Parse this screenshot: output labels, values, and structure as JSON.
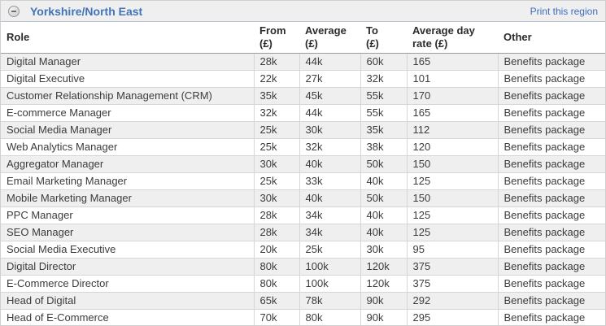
{
  "region": {
    "title": "Yorkshire/North East",
    "print_link_label": "Print this region",
    "collapse_icon": "minus-circle-icon"
  },
  "table": {
    "columns": [
      {
        "key": "role",
        "line1": "Role",
        "line2": ""
      },
      {
        "key": "from",
        "line1": "From",
        "line2": "(£)"
      },
      {
        "key": "avg",
        "line1": "Average",
        "line2": "(£)"
      },
      {
        "key": "to",
        "line1": "To",
        "line2": "(£)"
      },
      {
        "key": "rate",
        "line1": "Average day",
        "line2": "rate (£)"
      },
      {
        "key": "other",
        "line1": "Other",
        "line2": ""
      }
    ],
    "rows": [
      {
        "role": "Digital Manager",
        "from": "28k",
        "avg": "44k",
        "to": "60k",
        "rate": "165",
        "other": "Benefits package"
      },
      {
        "role": "Digital Executive",
        "from": "22k",
        "avg": "27k",
        "to": "32k",
        "rate": "101",
        "other": "Benefits package"
      },
      {
        "role": "Customer Relationship Management (CRM)",
        "from": "35k",
        "avg": "45k",
        "to": "55k",
        "rate": "170",
        "other": "Benefits package"
      },
      {
        "role": "E-commerce Manager",
        "from": "32k",
        "avg": "44k",
        "to": "55k",
        "rate": "165",
        "other": "Benefits package"
      },
      {
        "role": "Social Media Manager",
        "from": "25k",
        "avg": "30k",
        "to": "35k",
        "rate": "112",
        "other": "Benefits package"
      },
      {
        "role": "Web Analytics Manager",
        "from": "25k",
        "avg": "32k",
        "to": "38k",
        "rate": "120",
        "other": "Benefits package"
      },
      {
        "role": "Aggregator Manager",
        "from": "30k",
        "avg": "40k",
        "to": "50k",
        "rate": "150",
        "other": "Benefits package"
      },
      {
        "role": "Email Marketing Manager",
        "from": "25k",
        "avg": "33k",
        "to": "40k",
        "rate": "125",
        "other": "Benefits package"
      },
      {
        "role": "Mobile Marketing Manager",
        "from": "30k",
        "avg": "40k",
        "to": "50k",
        "rate": "150",
        "other": "Benefits package"
      },
      {
        "role": "PPC Manager",
        "from": "28k",
        "avg": "34k",
        "to": "40k",
        "rate": "125",
        "other": "Benefits package"
      },
      {
        "role": "SEO Manager",
        "from": "28k",
        "avg": "34k",
        "to": "40k",
        "rate": "125",
        "other": "Benefits package"
      },
      {
        "role": "Social Media Executive",
        "from": "20k",
        "avg": "25k",
        "to": "30k",
        "rate": "95",
        "other": "Benefits package"
      },
      {
        "role": "Digital Director",
        "from": "80k",
        "avg": "100k",
        "to": "120k",
        "rate": "375",
        "other": "Benefits package"
      },
      {
        "role": "E-Commerce Director",
        "from": "80k",
        "avg": "100k",
        "to": "120k",
        "rate": "375",
        "other": "Benefits package"
      },
      {
        "role": "Head of Digital",
        "from": "65k",
        "avg": "78k",
        "to": "90k",
        "rate": "292",
        "other": "Benefits package"
      },
      {
        "role": "Head of E-Commerce",
        "from": "70k",
        "avg": "80k",
        "to": "90k",
        "rate": "295",
        "other": "Benefits package"
      }
    ]
  },
  "colors": {
    "title_blue": "#4273b8",
    "link_blue": "#3e6dbf",
    "bar_background": "#efefef",
    "bar_border": "#b9c3d6",
    "row_alt_background": "#efefef",
    "cell_border": "#d6d6d6",
    "header_rule": "#9c9c9c"
  }
}
